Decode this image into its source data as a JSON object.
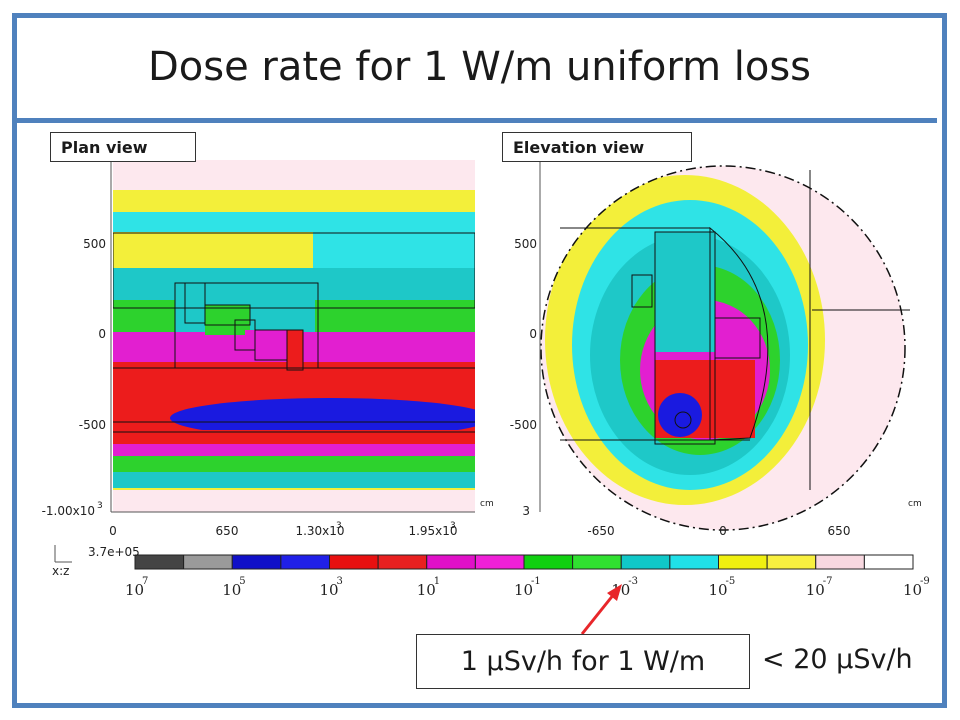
{
  "slide": {
    "title": "Dose rate for 1 W/m uniform loss",
    "accent_color": "#4f81bd"
  },
  "plan_view": {
    "label": "Plan view",
    "y_ticks": [
      "500",
      "0",
      "-500",
      "-1.00x10"
    ],
    "y_tick_exp": "3",
    "x_ticks": [
      "0",
      "650",
      "1.30x10",
      "1.95x10"
    ],
    "x_tick_exp": "3",
    "unit": "cm"
  },
  "elevation_view": {
    "label": "Elevation view",
    "y_ticks": [
      "500",
      "0",
      "-500"
    ],
    "y_edge": "3",
    "x_ticks": [
      "-650",
      "0",
      "650"
    ],
    "unit": "cm"
  },
  "colorbar": {
    "max_value": "3.7e+05",
    "base": "10",
    "exponents": [
      "7",
      "5",
      "3",
      "1",
      "-1",
      "-3",
      "-5",
      "-7",
      "-9"
    ],
    "colors": [
      "#444444",
      "#9a9a9a",
      "#1010c8",
      "#2020e8",
      "#e81010",
      "#e82020",
      "#e010c8",
      "#f020d8",
      "#10d010",
      "#30e030",
      "#10c8c8",
      "#20e0e8",
      "#f0f010",
      "#f8f040",
      "#f8d8e0",
      "#ffffff"
    ]
  },
  "annotation": {
    "callout": "1 μSv/h for 1 W/m",
    "limit": "< 20 μSv/h",
    "arrow_color": "#e8262a"
  }
}
